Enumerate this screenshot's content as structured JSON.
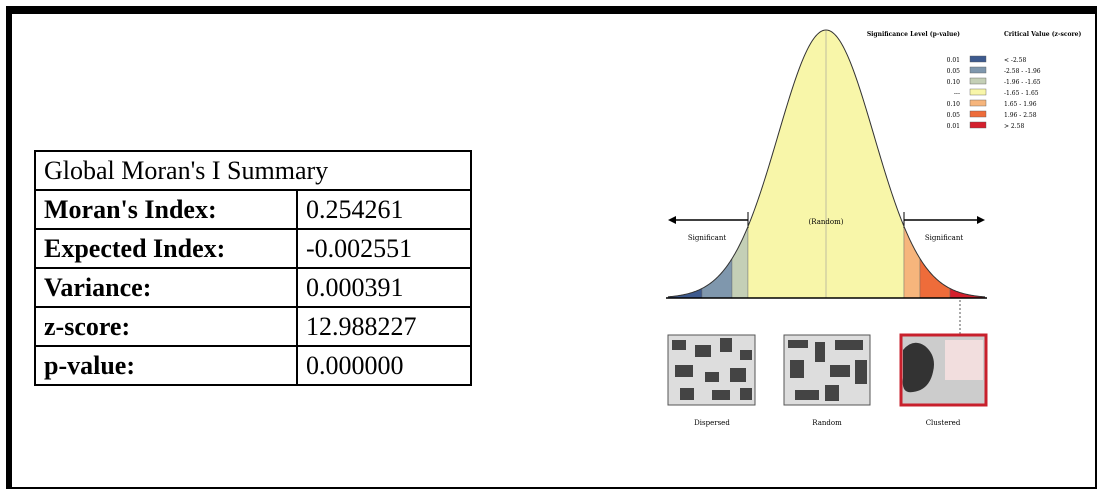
{
  "table": {
    "title": "Global Moran's I Summary",
    "rows": [
      [
        "Moran's Index:",
        "0.254261"
      ],
      [
        "Expected Index:",
        "-0.002551"
      ],
      [
        "Variance:",
        "0.000391"
      ],
      [
        "z-score:",
        "12.988227"
      ],
      [
        "p-value:",
        "0.000000"
      ]
    ]
  },
  "diagram": {
    "legend_headers": [
      "Significance Level (p-value)",
      "Critical Value (z-score)"
    ],
    "legend": [
      {
        "p": "0.01",
        "z": "< -2.58",
        "color": "#3d5a8e"
      },
      {
        "p": "0.05",
        "z": "-2.58 - -1.96",
        "color": "#7f97ad"
      },
      {
        "p": "0.10",
        "z": "-1.96 - -1.65",
        "color": "#c4cfb6"
      },
      {
        "p": "---",
        "z": "-1.65 - 1.65",
        "color": "#f8f6a9"
      },
      {
        "p": "0.10",
        "z": "1.65 - 1.96",
        "color": "#f6b57c"
      },
      {
        "p": "0.05",
        "z": "1.96 - 2.58",
        "color": "#ee6c3a"
      },
      {
        "p": "0.01",
        "z": "> 2.58",
        "color": "#d4202d"
      }
    ],
    "left_label": "Significant",
    "center_label": "(Random)",
    "right_label": "Significant",
    "patterns": [
      "Dispersed",
      "Random",
      "Clustered"
    ]
  }
}
